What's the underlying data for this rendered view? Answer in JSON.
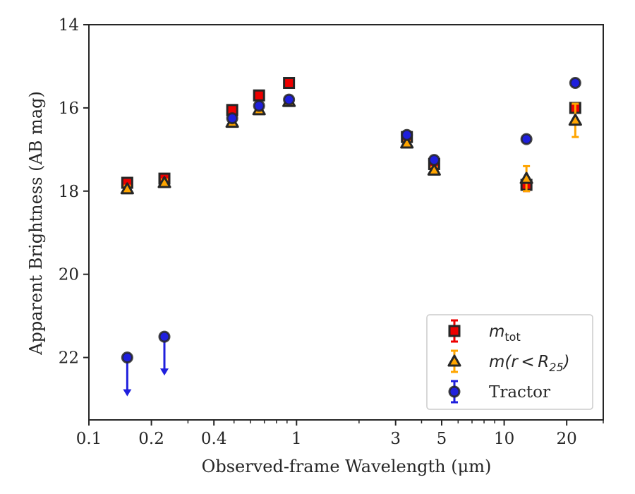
{
  "chart_data": {
    "type": "scatter",
    "title": "",
    "xlabel": "Observed-frame Wavelength (μm)",
    "ylabel": "Apparent Brightness (AB mag)",
    "xscale": "log",
    "xlim": [
      0.1,
      30
    ],
    "ylim": [
      23.5,
      14
    ],
    "y_inverted": true,
    "grid": false,
    "legend_position": "lower right",
    "x_ticks": [
      {
        "value": 0.1,
        "label": "0.1"
      },
      {
        "value": 0.2,
        "label": "0.2"
      },
      {
        "value": 0.4,
        "label": "0.4"
      },
      {
        "value": 1,
        "label": "1"
      },
      {
        "value": 3,
        "label": "3"
      },
      {
        "value": 5,
        "label": "5"
      },
      {
        "value": 10,
        "label": "10"
      },
      {
        "value": 20,
        "label": "20"
      }
    ],
    "x_minor_ticks": [
      0.3,
      0.5,
      0.6,
      0.7,
      0.8,
      0.9,
      2,
      4,
      6,
      7,
      8,
      9,
      30
    ],
    "y_ticks": [
      {
        "value": 14,
        "label": "14"
      },
      {
        "value": 16,
        "label": "16"
      },
      {
        "value": 18,
        "label": "18"
      },
      {
        "value": 20,
        "label": "20"
      },
      {
        "value": 22,
        "label": "22"
      }
    ],
    "series": [
      {
        "name": "m_tot",
        "legend_main": "m",
        "legend_sub": "tot",
        "marker": "square",
        "color": "#ee0000",
        "edge_color": "#262626",
        "err_color": "#ee0000",
        "points": [
          {
            "x": 0.153,
            "y": 17.8,
            "err": 0.1
          },
          {
            "x": 0.231,
            "y": 17.7,
            "err": 0.1
          },
          {
            "x": 0.49,
            "y": 16.05,
            "err": 0.05
          },
          {
            "x": 0.66,
            "y": 15.7,
            "err": 0.05
          },
          {
            "x": 0.92,
            "y": 15.4,
            "err": 0.05
          },
          {
            "x": 3.4,
            "y": 16.7,
            "err": 0.05
          },
          {
            "x": 4.6,
            "y": 17.35,
            "err": 0.08
          },
          {
            "x": 12.8,
            "y": 17.85,
            "err": 0.15
          },
          {
            "x": 22.0,
            "y": 16.0,
            "err": 0.1
          }
        ]
      },
      {
        "name": "m(r<R25)",
        "legend_main": "m(r < R",
        "legend_sub": "25",
        "legend_tail": ")",
        "marker": "triangle",
        "color": "#ffa500",
        "edge_color": "#262626",
        "err_color": "#ffa500",
        "points": [
          {
            "x": 0.153,
            "y": 17.95,
            "err": 0.08
          },
          {
            "x": 0.231,
            "y": 17.8,
            "err": 0.08
          },
          {
            "x": 0.49,
            "y": 16.35,
            "err": 0.05
          },
          {
            "x": 0.66,
            "y": 16.05,
            "err": 0.05
          },
          {
            "x": 0.92,
            "y": 15.85,
            "err": 0.05
          },
          {
            "x": 3.4,
            "y": 16.85,
            "err": 0.05
          },
          {
            "x": 4.6,
            "y": 17.5,
            "err": 0.08
          },
          {
            "x": 12.8,
            "y": 17.7,
            "err": 0.3
          },
          {
            "x": 22.0,
            "y": 16.3,
            "err": 0.4
          }
        ]
      },
      {
        "name": "Tractor",
        "marker": "circle",
        "color": "#1f1fdd",
        "edge_color": "#262626",
        "err_color": "#1f1fdd",
        "points": [
          {
            "x": 0.153,
            "y": 22.0,
            "upper_limit": true,
            "arrow_to": 22.9
          },
          {
            "x": 0.231,
            "y": 21.5,
            "upper_limit": true,
            "arrow_to": 22.4
          },
          {
            "x": 0.49,
            "y": 16.25,
            "err": 0.05
          },
          {
            "x": 0.66,
            "y": 15.95,
            "err": 0.05
          },
          {
            "x": 0.92,
            "y": 15.8,
            "err": 0.05
          },
          {
            "x": 3.4,
            "y": 16.65,
            "err": 0.05
          },
          {
            "x": 4.6,
            "y": 17.25,
            "err": 0.05
          },
          {
            "x": 12.8,
            "y": 16.75,
            "err": 0.05
          },
          {
            "x": 22.0,
            "y": 15.4,
            "err": 0.05
          }
        ]
      }
    ]
  }
}
